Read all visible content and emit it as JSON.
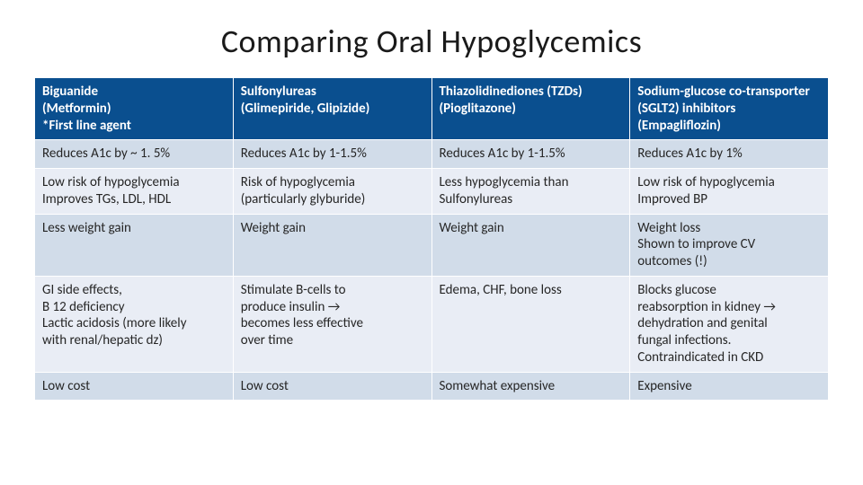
{
  "title": "Comparing Oral Hypoglycemics",
  "table": {
    "header_bg": "#0a4f8f",
    "header_color": "#ffffff",
    "row_bg_alt1": "#d1dce9",
    "row_bg_alt2": "#e9edf5",
    "text_color": "#262626",
    "border_color": "#ffffff",
    "font_size": 15,
    "columns": [
      "Biguanide\n(Metformin)\n*First line agent",
      "Sulfonylureas\n(Glimepiride, Glipizide)",
      "Thiazolidinediones (TZDs)\n(Pioglitazone)",
      "Sodium-glucose co-transporter (SGLT2) inhibitors (Empagliflozin)"
    ],
    "rows": [
      [
        "Reduces A1c by ~ 1. 5%",
        "Reduces A1c by 1-1.5%",
        "Reduces A1c by 1-1.5%",
        "Reduces A1c by 1%"
      ],
      [
        "Low risk of hypoglycemia\nImproves TGs, LDL, HDL",
        "Risk of hypoglycemia\n(particularly glyburide)",
        "Less hypoglycemia than\nSulfonylureas",
        "Low risk of hypoglycemia\nImproved BP"
      ],
      [
        "Less weight gain",
        "Weight gain",
        "Weight gain",
        "Weight loss\nShown to improve CV\noutcomes (!)"
      ],
      [
        "GI side effects,\nB 12 deficiency\nLactic acidosis (more likely\nwith renal/hepatic dz)",
        "Stimulate B-cells to\nproduce insulin →\nbecomes less effective\nover time",
        "Edema, CHF, bone loss",
        "Blocks glucose\nreabsorption in kidney →\ndehydration and genital\nfungal infections.\nContraindicated in CKD"
      ],
      [
        "Low cost",
        "Low cost",
        "Somewhat expensive",
        "Expensive"
      ]
    ]
  }
}
